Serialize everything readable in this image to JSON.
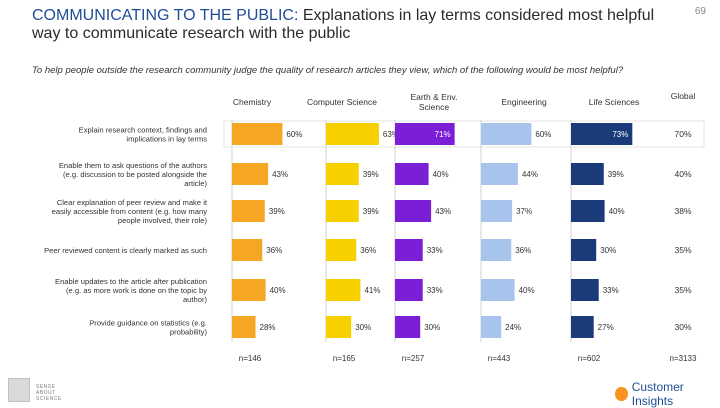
{
  "page": {
    "title_prefix": "COMMUNICATING TO THE PUBLIC:",
    "title_rest": " Explanations in lay terms considered most helpful way to communicate research with the public",
    "page_number": "69",
    "question": "To help people outside the research community judge the quality of research articles they view, which of the following would be most helpful?",
    "logo_left_line1": "SENSE",
    "logo_left_line2": "ABOUT SCIENCE",
    "logo_right": "Customer Insights"
  },
  "chart_data": {
    "type": "bar",
    "orientation": "horizontal-small-multiples",
    "title": "COMMUNICATING TO THE PUBLIC: Explanations in lay terms considered most helpful way to communicate research with the public",
    "categories": [
      "Explain research context, findings and implications in lay terms",
      "Enable them to ask questions of the authors (e.g. discussion to be posted alongside the article)",
      "Clear explanation of peer review and make it easily accessible from content (e.g. how many people involved, their role)",
      "Peer reviewed content is clearly marked as such",
      "Enable updates to the article after publication (e.g. as more work is done on the topic by author)",
      "Provide guidance on statistics (e.g. probability)"
    ],
    "series": [
      {
        "name": "Chemistry",
        "color": "#f5a623",
        "values": [
          60,
          43,
          39,
          36,
          40,
          28
        ],
        "labels": [
          "60%",
          "43%",
          "39%",
          "36%",
          "40%",
          "28%"
        ],
        "n": "n=146"
      },
      {
        "name": "Computer Science",
        "color": "#f7d000",
        "values": [
          63,
          39,
          39,
          36,
          41,
          30
        ],
        "labels": [
          "63%",
          "39%",
          "39%",
          "36%",
          "41%",
          "30%"
        ],
        "n": "n=165"
      },
      {
        "name": "Earth & Env. Science",
        "color": "#7a1fd6",
        "values": [
          71,
          40,
          43,
          33,
          33,
          30
        ],
        "labels": [
          "71%",
          "40%",
          "43%",
          "33%",
          "33%",
          "30%"
        ],
        "n": "n=257"
      },
      {
        "name": "Engineering",
        "color": "#a9c4ec",
        "values": [
          60,
          44,
          37,
          36,
          40,
          24
        ],
        "labels": [
          "60%",
          "44%",
          "37%",
          "36%",
          "40%",
          "24%"
        ],
        "n": "n=443"
      },
      {
        "name": "Life Sciences",
        "color": "#1a3a7a",
        "values": [
          73,
          39,
          40,
          30,
          33,
          27
        ],
        "labels": [
          "73%",
          "39%",
          "40%",
          "30%",
          "33%",
          "27%"
        ],
        "n": "n=602"
      }
    ],
    "global": {
      "name": "Global",
      "values": [
        70,
        40,
        38,
        35,
        35,
        30
      ],
      "labels": [
        "70%",
        "40%",
        "38%",
        "35%",
        "35%",
        "30%"
      ],
      "n": "n=3133"
    },
    "xlim": [
      0,
      100
    ],
    "highlight_top_row": true
  }
}
